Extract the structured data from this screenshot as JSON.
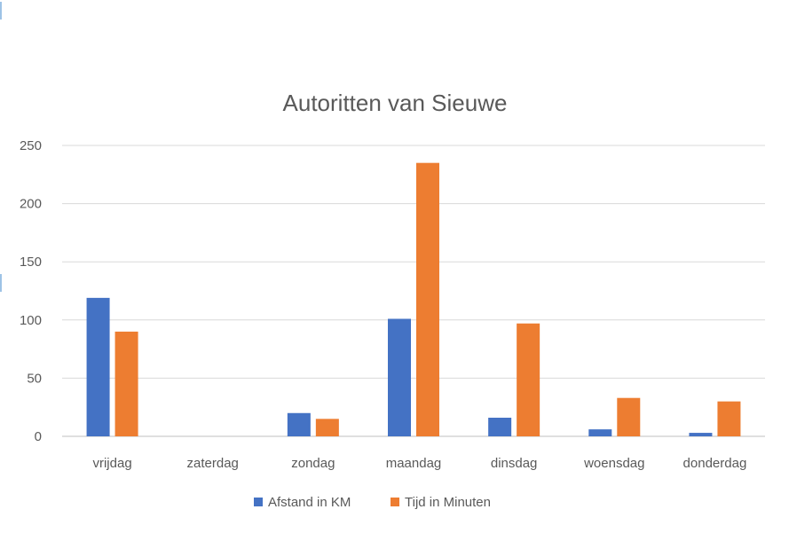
{
  "chart_data": {
    "type": "bar",
    "title": "Autoritten van Sieuwe",
    "categories": [
      "vrijdag",
      "zaterdag",
      "zondag",
      "maandag",
      "dinsdag",
      "woensdag",
      "donderdag"
    ],
    "series": [
      {
        "name": "Afstand in KM",
        "color": "#4472C4",
        "values": [
          119,
          0,
          20,
          101,
          16,
          6,
          3
        ]
      },
      {
        "name": "Tijd in Minuten",
        "color": "#ED7D31",
        "values": [
          90,
          0,
          15,
          235,
          97,
          33,
          30
        ]
      }
    ],
    "y_ticks": [
      "0",
      "50",
      "100",
      "150",
      "200",
      "250"
    ],
    "ylim": [
      0,
      250
    ],
    "grid": true,
    "legend_position": "bottom"
  }
}
